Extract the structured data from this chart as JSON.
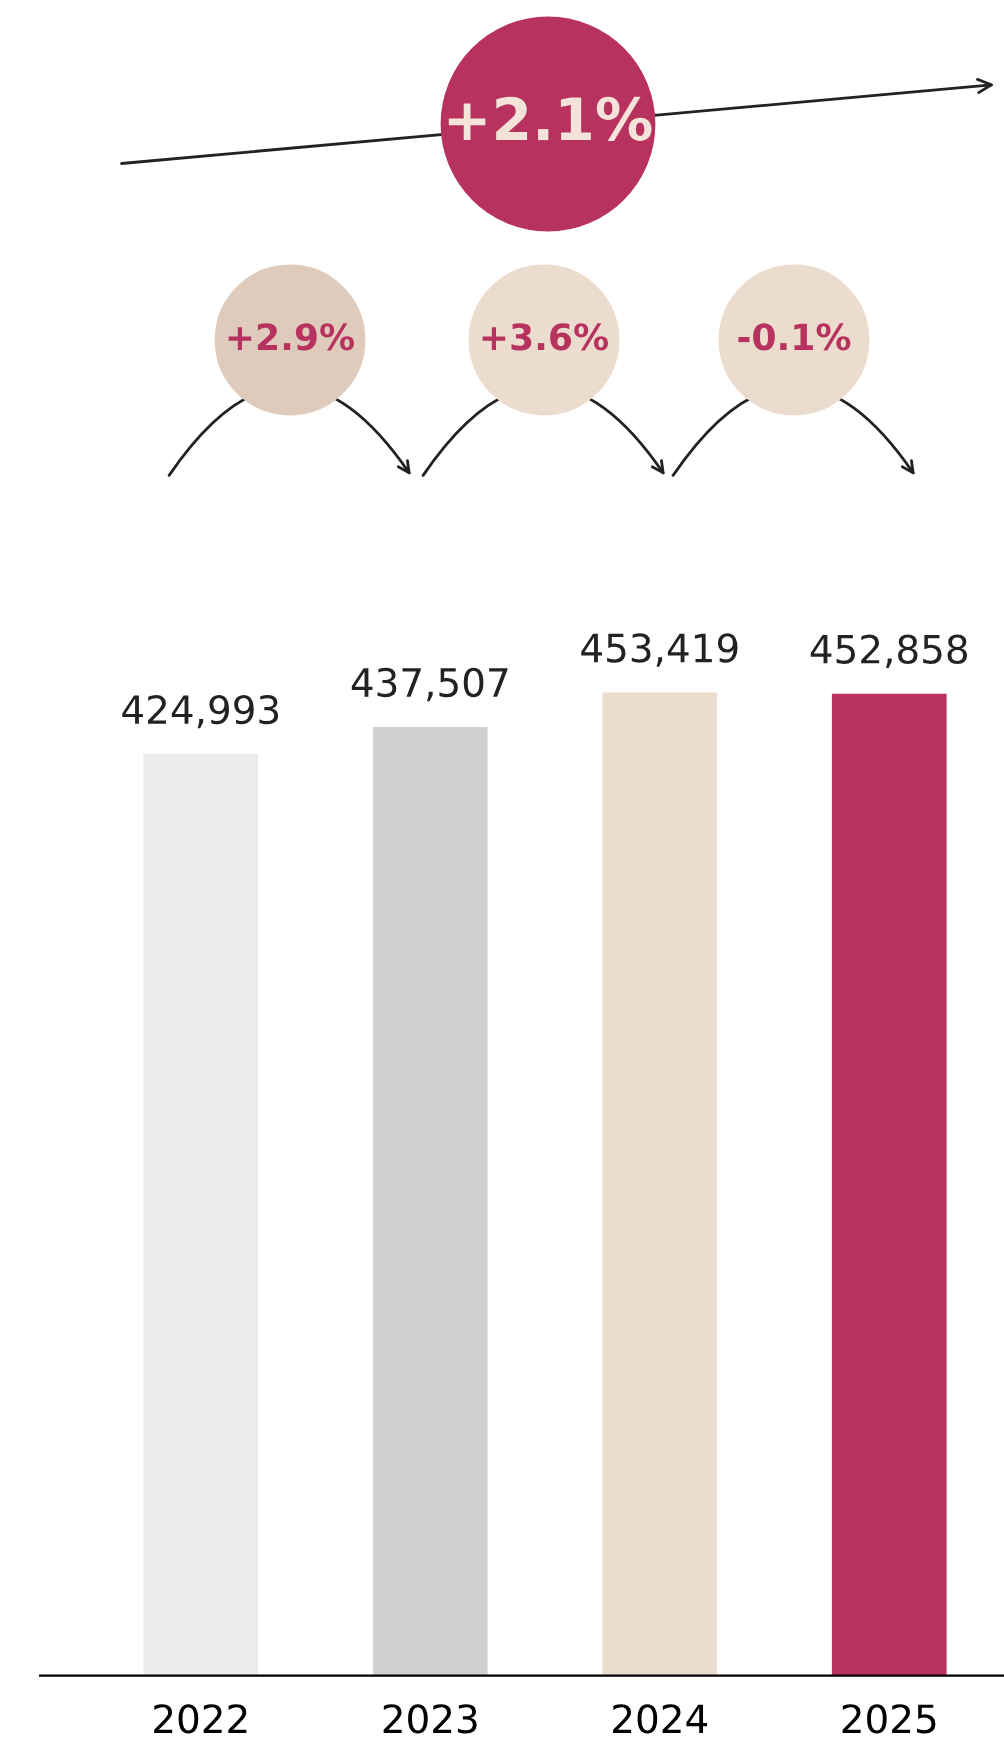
{
  "chart_data": {
    "type": "bar",
    "categories": [
      "2022",
      "2023",
      "2024",
      "2025"
    ],
    "values": [
      424993,
      437507,
      453419,
      452858
    ],
    "colors": [
      "#ebebeb",
      "#d0d0d0",
      "#ecdccd",
      "#b8325f"
    ],
    "value_labels": [
      "424,993",
      "437,507",
      "453,419",
      "452,858"
    ],
    "grid": false,
    "legend": false,
    "annotations": [
      "+2.1%",
      "+2.9%",
      "+3.6%",
      "-0.1%"
    ]
  }
}
